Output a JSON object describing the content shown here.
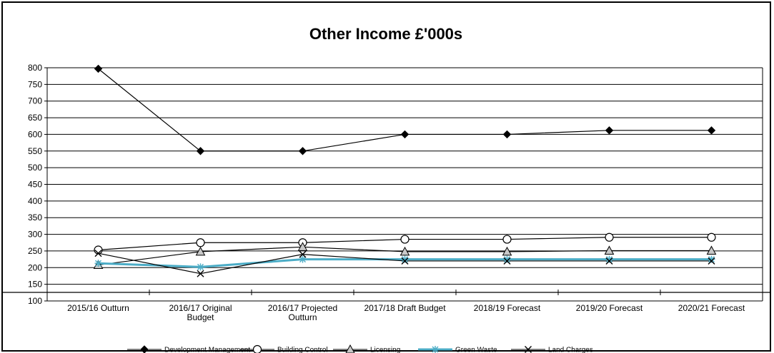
{
  "chart_data": {
    "type": "line",
    "title": "Other Income £'000s",
    "xlabel": "",
    "ylabel": "",
    "ylim": [
      100,
      800
    ],
    "yticks": [
      100,
      150,
      200,
      250,
      300,
      350,
      400,
      450,
      500,
      550,
      600,
      650,
      700,
      750,
      800
    ],
    "grid": "horizontal",
    "legend_position": "bottom",
    "categories": [
      [
        "2015/16 Outturn"
      ],
      [
        "2016/17 Original",
        "Budget"
      ],
      [
        "2016/17 Projected",
        "Outturn"
      ],
      [
        "2017/18 Draft Budget"
      ],
      [
        "2018/19 Forecast"
      ],
      [
        "2019/20 Forecast"
      ],
      [
        "2020/21 Forecast"
      ]
    ],
    "series": [
      {
        "name": "Development Management",
        "marker": "diamond",
        "color": "#000000",
        "values": [
          797,
          550,
          550,
          600,
          600,
          612,
          612
        ]
      },
      {
        "name": "Building Control",
        "marker": "circle",
        "color": "#000000",
        "values": [
          253,
          275,
          275,
          285,
          285,
          291,
          291
        ]
      },
      {
        "name": "Licensing",
        "marker": "triangle",
        "color": "#000000",
        "values": [
          208,
          248,
          262,
          248,
          248,
          251,
          251
        ]
      },
      {
        "name": "Green Waste",
        "marker": "asterisk",
        "color": "#4bacc6",
        "values": [
          213,
          202,
          225,
          225,
          225,
          225,
          225
        ]
      },
      {
        "name": "Land Charges",
        "marker": "x",
        "color": "#000000",
        "values": [
          243,
          182,
          240,
          220,
          220,
          220,
          220
        ]
      }
    ]
  }
}
